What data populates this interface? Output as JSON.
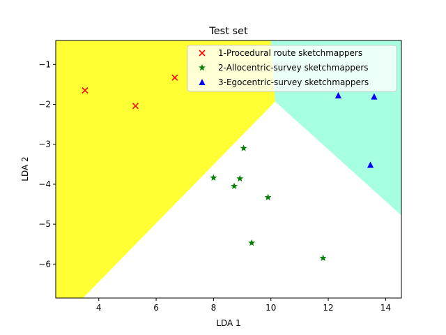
{
  "chart_data": {
    "type": "scatter",
    "title": "Test set",
    "xlabel": "LDA 1",
    "ylabel": "LDA 2",
    "xlim": [
      2.5,
      14.55
    ],
    "ylim": [
      -6.85,
      -0.4
    ],
    "xticks": [
      4,
      6,
      8,
      10,
      12,
      14
    ],
    "yticks": [
      -1,
      -2,
      -3,
      -4,
      -5,
      -6
    ],
    "grid": false,
    "legend_position": "top-right",
    "regions": [
      {
        "name": "1-Procedural route sketchmappers",
        "color": "#ffff33",
        "polygon": [
          [
            2.5,
            -0.4
          ],
          [
            10.0,
            -0.4
          ],
          [
            10.15,
            -1.93
          ],
          [
            3.45,
            -6.85
          ],
          [
            2.5,
            -6.85
          ]
        ]
      },
      {
        "name": "3-Egocentric-survey sketchmappers",
        "color": "#a5ffe0",
        "polygon": [
          [
            10.0,
            -0.4
          ],
          [
            14.55,
            -0.4
          ],
          [
            14.55,
            -4.78
          ],
          [
            10.15,
            -1.93
          ]
        ]
      }
    ],
    "series": [
      {
        "name": "1-Procedural route sketchmappers",
        "marker": "x",
        "color": "#ff0000",
        "points": [
          [
            3.52,
            -1.65
          ],
          [
            5.28,
            -2.04
          ],
          [
            6.65,
            -1.33
          ]
        ]
      },
      {
        "name": "2-Allocentric-survey sketchmappers",
        "marker": "star",
        "color": "#008000",
        "points": [
          [
            9.05,
            -3.1
          ],
          [
            8.0,
            -3.84
          ],
          [
            8.92,
            -3.86
          ],
          [
            8.72,
            -4.05
          ],
          [
            9.9,
            -4.33
          ],
          [
            9.33,
            -5.47
          ],
          [
            11.82,
            -5.85
          ]
        ]
      },
      {
        "name": "3-Egocentric-survey sketchmappers",
        "marker": "triangle",
        "color": "#0000ff",
        "points": [
          [
            12.35,
            -1.78
          ],
          [
            13.6,
            -1.81
          ],
          [
            13.47,
            -3.52
          ]
        ]
      }
    ]
  }
}
